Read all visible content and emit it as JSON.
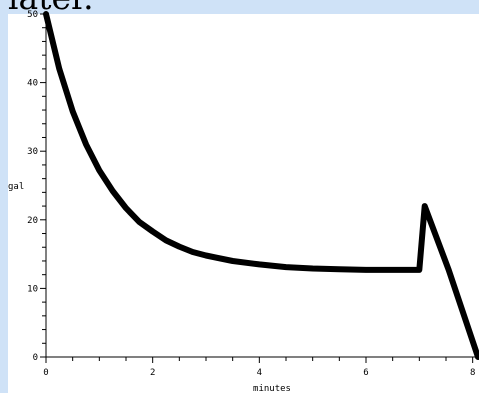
{
  "page": {
    "top_text": "later."
  },
  "chart_data": {
    "type": "line",
    "xlabel": "minutes",
    "ylabel": "gal",
    "xlim": [
      0,
      8.1
    ],
    "ylim": [
      0,
      50
    ],
    "x_ticks": [
      0,
      2,
      4,
      6,
      8
    ],
    "y_ticks": [
      0,
      10,
      20,
      30,
      40,
      50
    ],
    "grid": false,
    "line_color": "#000000",
    "series": [
      {
        "x": [
          0,
          0.25,
          0.5,
          0.75,
          1.0,
          1.25,
          1.5,
          1.75,
          2.0,
          2.25,
          2.5,
          2.75,
          3.0,
          3.5,
          4.0,
          4.5,
          5.0,
          5.5,
          6.0,
          6.5,
          7.0,
          7.1,
          7.55,
          8.1
        ],
        "y": [
          50,
          42.0,
          35.8,
          31.0,
          27.2,
          24.2,
          21.7,
          19.7,
          18.3,
          17.0,
          16.1,
          15.3,
          14.8,
          14.0,
          13.5,
          13.1,
          12.9,
          12.8,
          12.7,
          12.7,
          12.7,
          22.0,
          12.7,
          0
        ]
      }
    ]
  }
}
